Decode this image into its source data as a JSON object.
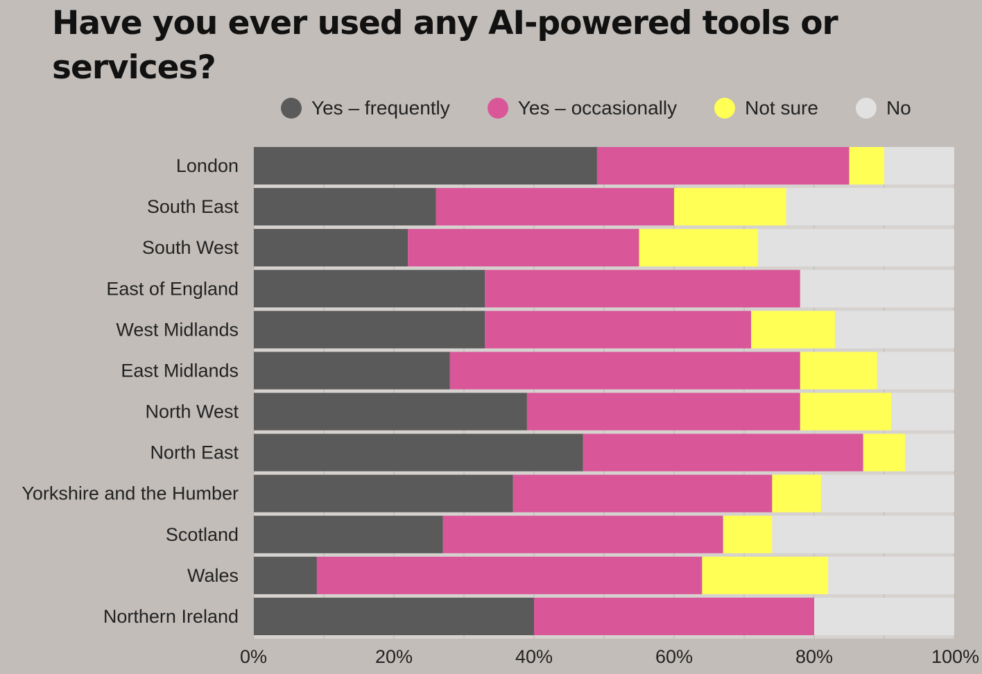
{
  "chart_data": {
    "type": "bar",
    "orientation": "horizontal",
    "stacked": true,
    "title": "Have you ever used any AI-powered tools or services?",
    "categories": [
      "London",
      "South East",
      "South West",
      "East of England",
      "West Midlands",
      "East Midlands",
      "North West",
      "North East",
      "Yorkshire and the Humber",
      "Scotland",
      "Wales",
      "Northern Ireland"
    ],
    "series": [
      {
        "name": "Yes – frequently",
        "color": "#5a5a5a",
        "values": [
          49,
          26,
          22,
          33,
          33,
          28,
          39,
          47,
          37,
          27,
          9,
          40
        ]
      },
      {
        "name": "Yes – occasionally",
        "color": "#d95798",
        "values": [
          36,
          34,
          33,
          45,
          38,
          50,
          39,
          40,
          37,
          40,
          55,
          40
        ]
      },
      {
        "name": "Not sure",
        "color": "#ffff55",
        "values": [
          5,
          16,
          17,
          0,
          12,
          11,
          13,
          6,
          7,
          7,
          18,
          0
        ]
      },
      {
        "name": "No",
        "color": "#e1e1e1",
        "values": [
          10,
          24,
          28,
          22,
          17,
          11,
          9,
          7,
          19,
          26,
          18,
          20
        ]
      }
    ],
    "xlim": [
      0,
      100
    ],
    "xticks": [
      "0%",
      "20%",
      "40%",
      "60%",
      "80%",
      "100%"
    ],
    "xtick_values": [
      0,
      20,
      40,
      60,
      80,
      100
    ],
    "legend_position": "top",
    "grid": true
  }
}
